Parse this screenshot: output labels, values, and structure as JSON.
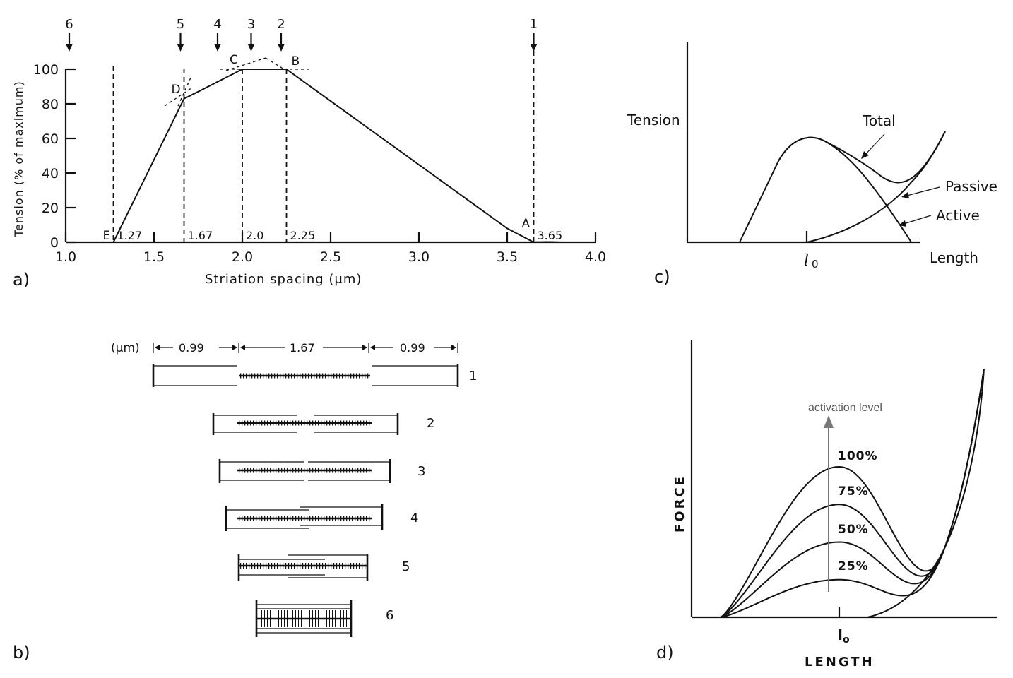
{
  "panels": {
    "a": "a)",
    "b": "b)",
    "c": "c)",
    "d": "d)"
  },
  "chart_data": [
    {
      "id": "a",
      "type": "line",
      "xlabel": "Striation spacing (μm)",
      "ylabel": "Tension (% of maximum)",
      "xlim": [
        1.0,
        4.0
      ],
      "ylim": [
        0,
        100
      ],
      "xticks": [
        "1.0",
        "1.5",
        "2.0",
        "2.5",
        "3.0",
        "3.5",
        "4.0"
      ],
      "xtick_values": [
        1.0,
        1.5,
        2.0,
        2.5,
        3.0,
        3.5,
        4.0
      ],
      "yticks": [
        "0",
        "20",
        "40",
        "60",
        "80",
        "100"
      ],
      "ytick_values": [
        0,
        20,
        40,
        60,
        80,
        100
      ],
      "series": [
        {
          "x": [
            1.27,
            1.67,
            1.75,
            2.0,
            2.25,
            3.5,
            3.65
          ],
          "y": [
            0,
            83,
            87,
            100,
            100,
            8,
            0
          ]
        }
      ],
      "vlines": [
        {
          "x": 1.27,
          "value": "1.27",
          "letter": "E"
        },
        {
          "x": 1.67,
          "value": "1.67",
          "letter": "D"
        },
        {
          "x": 2.0,
          "value": "2.0",
          "letter": "C"
        },
        {
          "x": 2.25,
          "value": "2.25",
          "letter": "B"
        },
        {
          "x": 3.65,
          "value": "3.65",
          "letter": "A"
        }
      ],
      "top_arrows": [
        {
          "label": "6",
          "x": 1.02
        },
        {
          "label": "5",
          "x": 1.65
        },
        {
          "label": "4",
          "x": 1.86
        },
        {
          "label": "3",
          "x": 2.05
        },
        {
          "label": "2",
          "x": 2.22
        },
        {
          "label": "1",
          "x": 3.65
        }
      ]
    },
    {
      "id": "c",
      "type": "line",
      "xlabel": "Length",
      "ylabel": "Tension",
      "xtick": "l",
      "xtick_sub": "0",
      "series_labels": [
        "Total",
        "Passive",
        "Active"
      ]
    },
    {
      "id": "d",
      "type": "line",
      "xlabel": "LENGTH",
      "ylabel": "FORCE",
      "xtick": "l",
      "xtick_sub": "o",
      "arrow_label": "activation level",
      "series": [
        {
          "name": "100%",
          "peak": 100
        },
        {
          "name": "75%",
          "peak": 75
        },
        {
          "name": "50%",
          "peak": 50
        },
        {
          "name": "25%",
          "peak": 25
        }
      ]
    }
  ],
  "diagram_b": {
    "unit": "(μm)",
    "dims": [
      "0.99",
      "1.67",
      "0.99"
    ],
    "sarcomeres": [
      "1",
      "2",
      "3",
      "4",
      "5",
      "6"
    ]
  }
}
